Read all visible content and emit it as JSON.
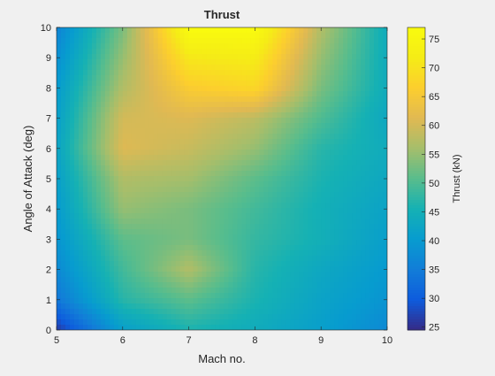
{
  "chart_data": {
    "type": "heatmap",
    "title": "Thrust",
    "xlabel": "Mach no.",
    "ylabel": "Angle of Attack (deg)",
    "colorbar_label": "Thrust (kN)",
    "colormap": "parula",
    "x_ticks": [
      "5",
      "6",
      "7",
      "8",
      "9",
      "10"
    ],
    "y_ticks": [
      "0",
      "1",
      "2",
      "3",
      "4",
      "5",
      "6",
      "7",
      "8",
      "9",
      "10"
    ],
    "colorbar_ticks": [
      "25",
      "30",
      "35",
      "40",
      "45",
      "50",
      "55",
      "60",
      "65",
      "70",
      "75"
    ],
    "xlim": [
      5,
      10
    ],
    "ylim": [
      0,
      10
    ],
    "clim": [
      24.5,
      77
    ],
    "x": [
      5,
      6,
      7,
      8,
      9,
      10
    ],
    "y": [
      0,
      1,
      2,
      3,
      4,
      5,
      6,
      7,
      8,
      9,
      10
    ],
    "z": [
      [
        26,
        41,
        46,
        44,
        41,
        37
      ],
      [
        34,
        47,
        51,
        46,
        42,
        39
      ],
      [
        37,
        49,
        57,
        47,
        43,
        40
      ],
      [
        39,
        51,
        53,
        48,
        45,
        41
      ],
      [
        40,
        55,
        53,
        49,
        45,
        42
      ],
      [
        41,
        57,
        56,
        51,
        46,
        43
      ],
      [
        42,
        61,
        59,
        55,
        47,
        44
      ],
      [
        41,
        60,
        61,
        58,
        50,
        43
      ],
      [
        40,
        57,
        66,
        68,
        53,
        44
      ],
      [
        38,
        55,
        71,
        72,
        55,
        44
      ],
      [
        36,
        53,
        77,
        77,
        57,
        44
      ]
    ],
    "grid": false
  }
}
